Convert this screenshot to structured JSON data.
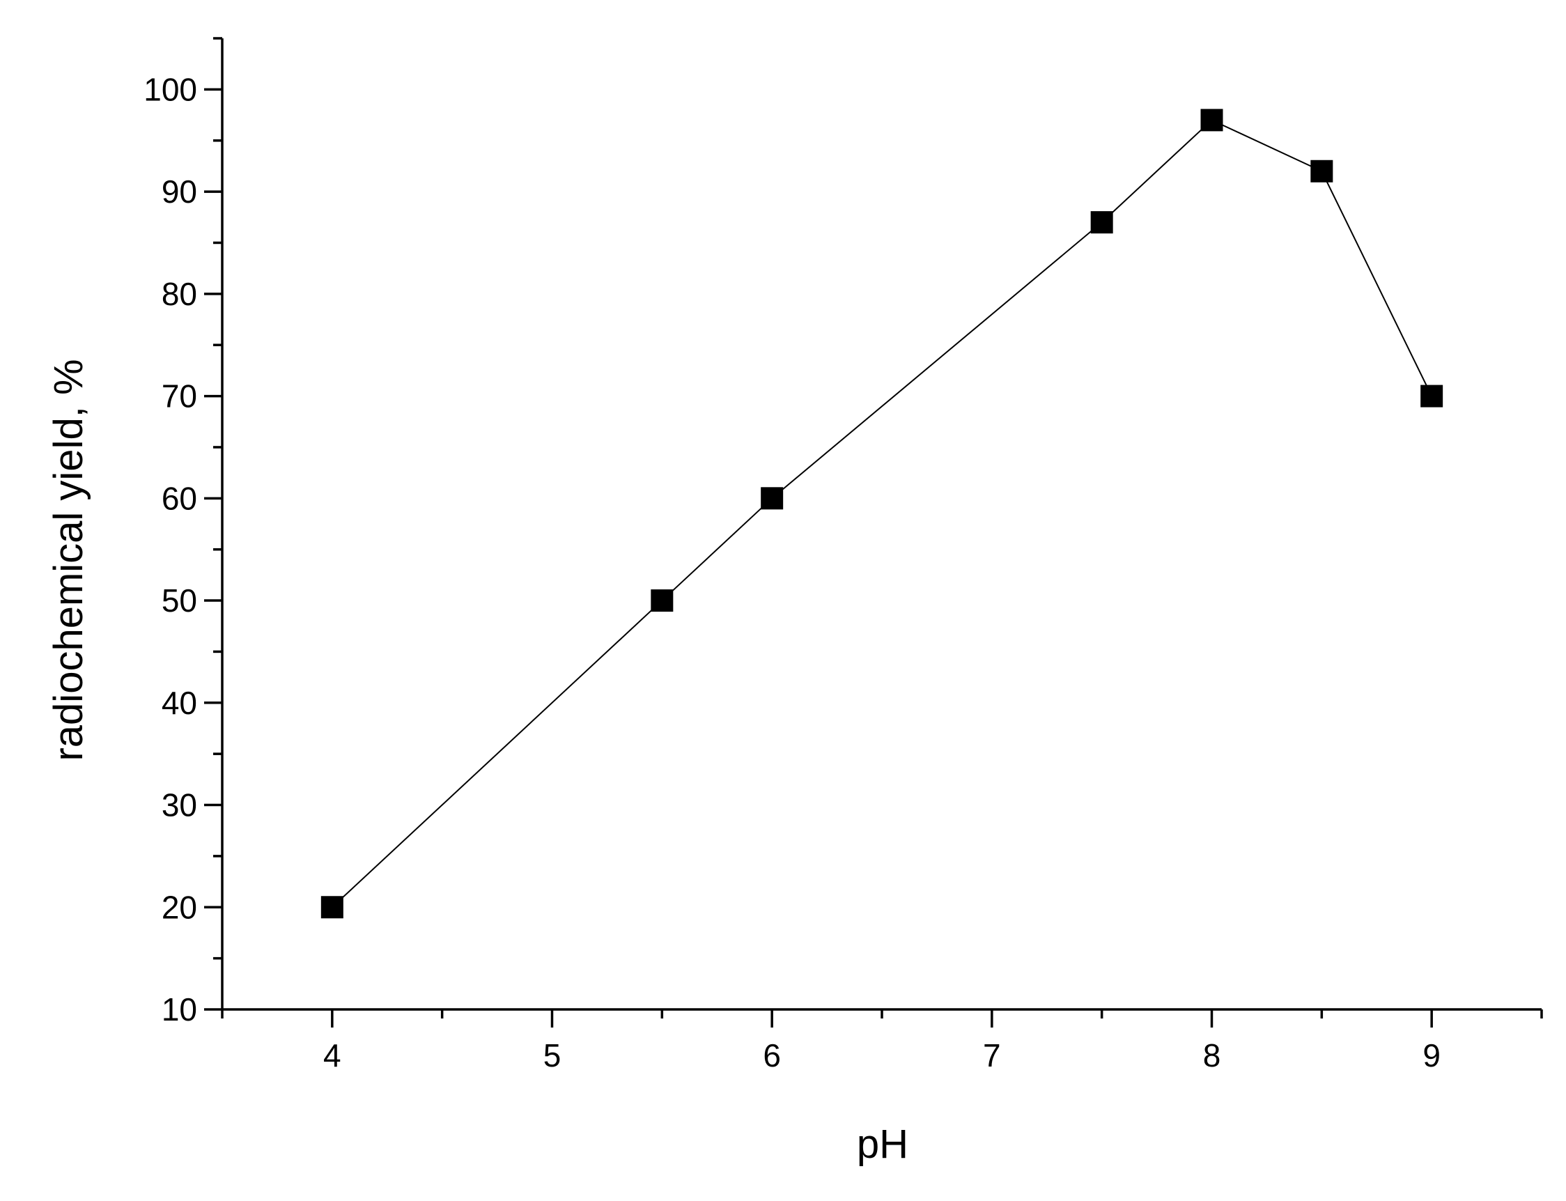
{
  "chart_data": {
    "type": "line",
    "x_label": "pH",
    "y_label": "radiochemical yield, %",
    "x": [
      4,
      5.5,
      6,
      7.5,
      8,
      8.5,
      9
    ],
    "series": [
      {
        "color": "#000000",
        "marker": "square",
        "values": [
          20,
          50,
          60,
          87,
          97,
          92,
          70
        ]
      }
    ],
    "xlim": [
      3.5,
      9.5
    ],
    "xticks": [
      4,
      5,
      6,
      7,
      8,
      9
    ],
    "ylim": [
      10,
      105
    ],
    "yticks": [
      10,
      20,
      30,
      40,
      50,
      60,
      70,
      80,
      90,
      100
    ],
    "grid": false
  }
}
